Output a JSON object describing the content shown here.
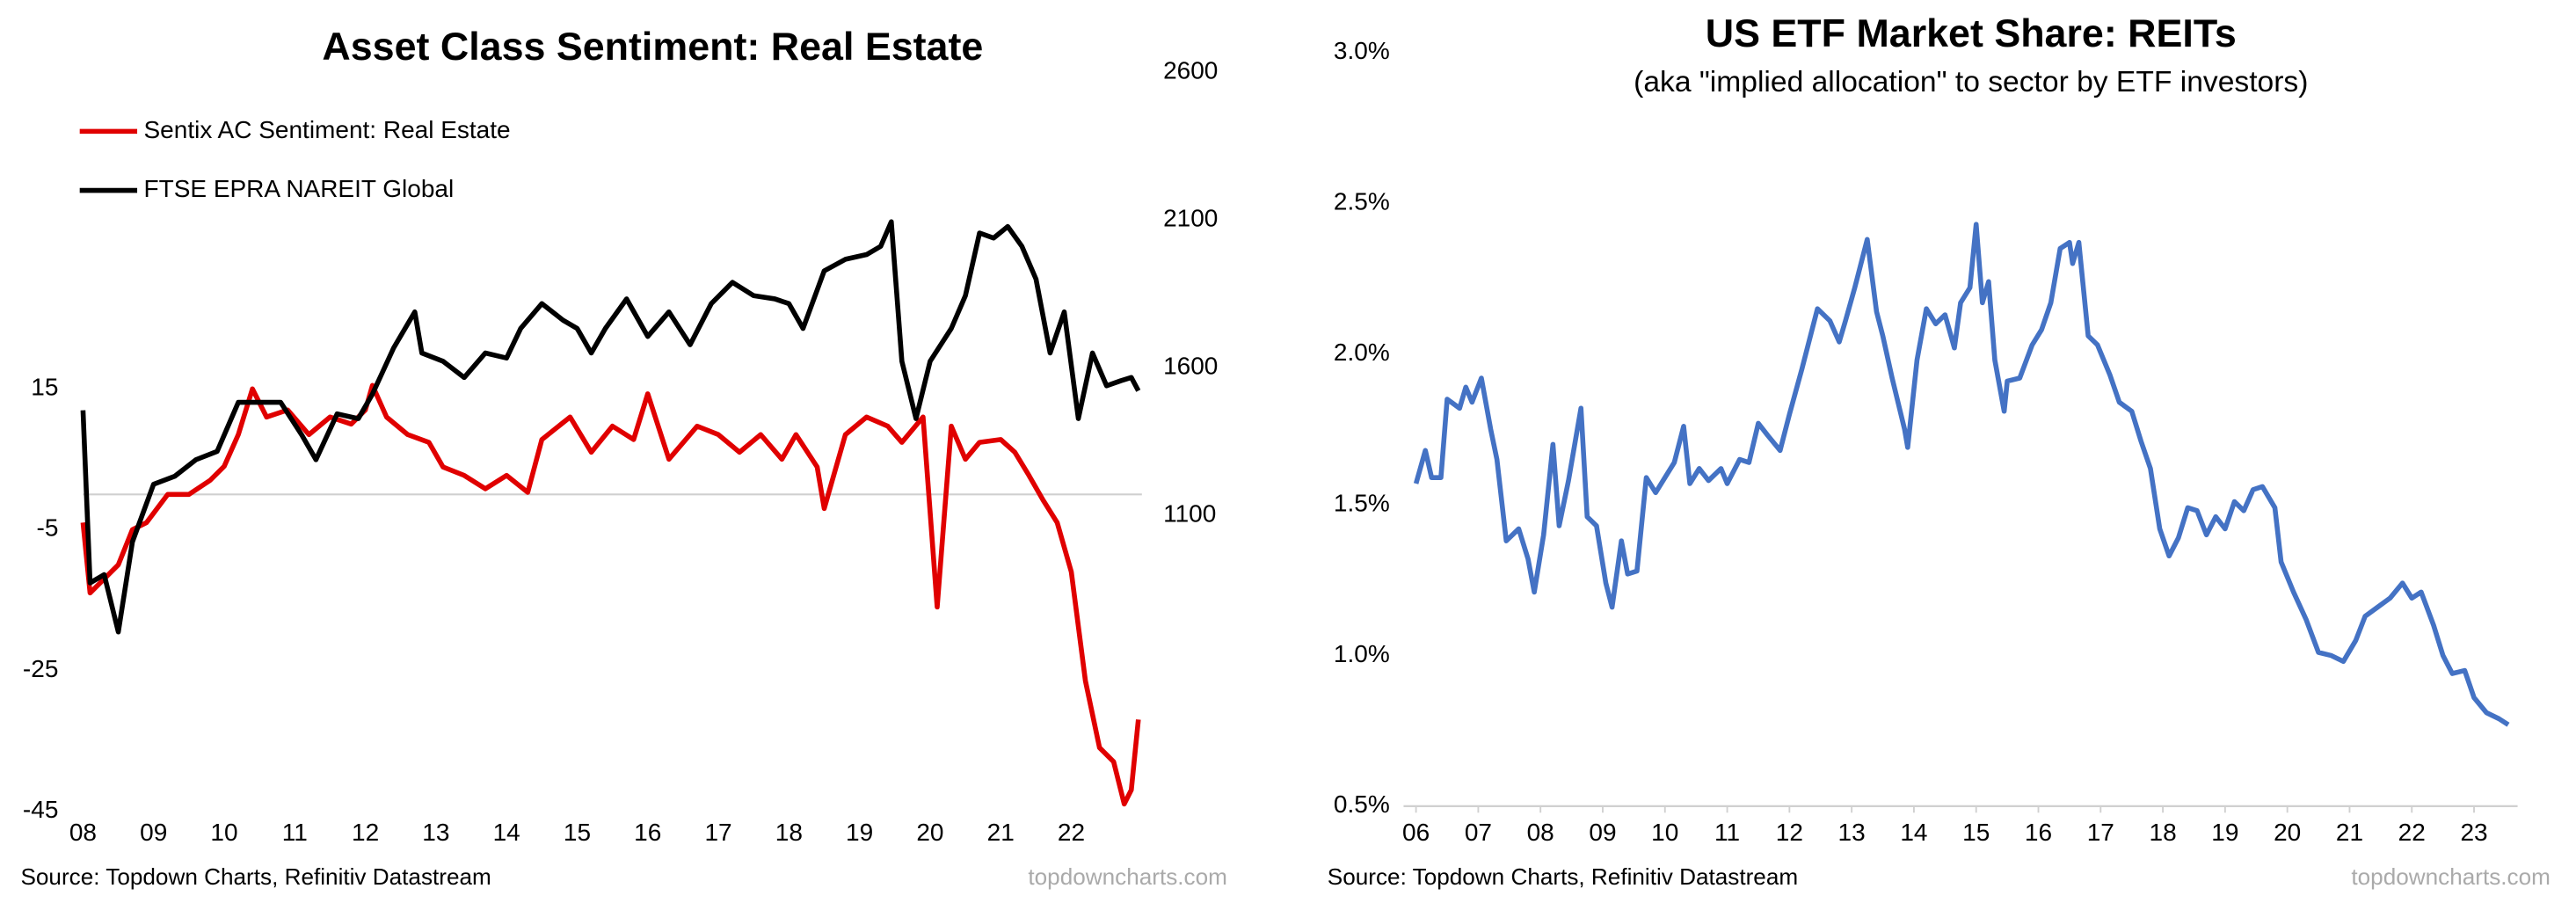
{
  "chart_data": [
    {
      "type": "line",
      "title": "Asset Class Sentiment: Real Estate",
      "source": "Source: Topdown Charts, Refinitiv Datastream",
      "watermark": "topdowncharts.com",
      "legend": "upper-left",
      "xlim": [
        2008,
        2023
      ],
      "xticks": [
        {
          "value": 2008,
          "label": "08"
        },
        {
          "value": 2009,
          "label": "09"
        },
        {
          "value": 2010,
          "label": "10"
        },
        {
          "value": 2011,
          "label": "11"
        },
        {
          "value": 2012,
          "label": "12"
        },
        {
          "value": 2013,
          "label": "13"
        },
        {
          "value": 2014,
          "label": "14"
        },
        {
          "value": 2015,
          "label": "15"
        },
        {
          "value": 2016,
          "label": "16"
        },
        {
          "value": 2017,
          "label": "17"
        },
        {
          "value": 2018,
          "label": "18"
        },
        {
          "value": 2019,
          "label": "19"
        },
        {
          "value": 2020,
          "label": "20"
        },
        {
          "value": 2021,
          "label": "21"
        },
        {
          "value": 2022,
          "label": "22"
        }
      ],
      "ylim": [
        -45,
        60
      ],
      "yticks": [
        15,
        -5,
        -25,
        -45
      ],
      "y2lim": [
        100,
        2600
      ],
      "y2ticks": [
        1100,
        1600,
        2100,
        2600
      ],
      "series": [
        {
          "name": "Sentix AC Sentiment: Real Estate",
          "color": "#e00000",
          "x": [
            2008.0,
            2008.1,
            2008.3,
            2008.5,
            2008.7,
            2008.9,
            2009.2,
            2009.5,
            2009.8,
            2010.0,
            2010.2,
            2010.4,
            2010.6,
            2010.9,
            2011.2,
            2011.5,
            2011.8,
            2012.0,
            2012.1,
            2012.3,
            2012.6,
            2012.9,
            2013.1,
            2013.4,
            2013.7,
            2014.0,
            2014.3,
            2014.5,
            2014.9,
            2015.2,
            2015.5,
            2015.8,
            2016.0,
            2016.3,
            2016.7,
            2017.0,
            2017.3,
            2017.6,
            2017.9,
            2018.1,
            2018.4,
            2018.5,
            2018.8,
            2019.1,
            2019.4,
            2019.6,
            2019.9,
            2020.1,
            2020.3,
            2020.5,
            2020.7,
            2021.0,
            2021.2,
            2021.4,
            2021.6,
            2021.8,
            2022.0,
            2022.2,
            2022.4,
            2022.6,
            2022.75,
            2022.85,
            2022.95
          ],
          "values": [
            -4,
            -14,
            -12,
            -10,
            -5,
            -4,
            0,
            0,
            2,
            4,
            8.5,
            15,
            11,
            12,
            8.5,
            11,
            10,
            12,
            15.5,
            11,
            8.5,
            7.4,
            3.9,
            2.7,
            0.8,
            2.7,
            0.3,
            7.8,
            11,
            6,
            9.7,
            7.8,
            14.3,
            5,
            9.7,
            8.5,
            6,
            8.5,
            5,
            8.5,
            3.9,
            -2,
            8.5,
            11,
            9.7,
            7.4,
            11,
            -16,
            9.7,
            5,
            7.4,
            7.8,
            6,
            2.7,
            -0.8,
            -4,
            -11,
            -26.5,
            -36,
            -38,
            -44,
            -42,
            -32
          ]
        },
        {
          "name": "FTSE EPRA NAREIT Global",
          "color": "#000000",
          "axis": "y2",
          "x": [
            2008.0,
            2008.1,
            2008.3,
            2008.5,
            2008.7,
            2009.0,
            2009.3,
            2009.6,
            2009.9,
            2010.2,
            2010.5,
            2010.8,
            2011.1,
            2011.3,
            2011.6,
            2011.9,
            2012.1,
            2012.4,
            2012.7,
            2012.8,
            2013.1,
            2013.4,
            2013.7,
            2014.0,
            2014.2,
            2014.5,
            2014.8,
            2015.0,
            2015.2,
            2015.4,
            2015.7,
            2016.0,
            2016.3,
            2016.6,
            2016.9,
            2017.2,
            2017.5,
            2017.8,
            2018.0,
            2018.2,
            2018.5,
            2018.8,
            2019.1,
            2019.3,
            2019.45,
            2019.6,
            2019.8,
            2020.0,
            2020.3,
            2020.5,
            2020.7,
            2020.9,
            2021.1,
            2021.3,
            2021.5,
            2021.7,
            2021.9,
            2022.1,
            2022.3,
            2022.5,
            2022.7,
            2022.85,
            2022.95
          ],
          "values": [
            1456,
            872,
            900,
            706,
            1011,
            1206,
            1233,
            1289,
            1317,
            1483,
            1483,
            1483,
            1372,
            1289,
            1444,
            1428,
            1511,
            1667,
            1789,
            1650,
            1622,
            1567,
            1650,
            1633,
            1733,
            1817,
            1761,
            1733,
            1650,
            1733,
            1833,
            1706,
            1789,
            1678,
            1817,
            1889,
            1844,
            1833,
            1817,
            1733,
            1928,
            1967,
            1983,
            2011,
            2094,
            1622,
            1428,
            1622,
            1733,
            1844,
            2056,
            2039,
            2078,
            2011,
            1900,
            1650,
            1789,
            1428,
            1650,
            1539,
            1556,
            1567,
            1522
          ]
        }
      ]
    },
    {
      "type": "line",
      "title": "US ETF Market Share: REITs",
      "subtitle": "(aka \"implied allocation\" to sector by ETF investors)",
      "source": "Source: Topdown Charts, Refinitiv Datastream",
      "watermark": "topdowncharts.com",
      "xlim": [
        2005.8,
        2023.7
      ],
      "xticks": [
        {
          "value": 2006,
          "label": "06"
        },
        {
          "value": 2007,
          "label": "07"
        },
        {
          "value": 2008,
          "label": "08"
        },
        {
          "value": 2009,
          "label": "09"
        },
        {
          "value": 2010,
          "label": "10"
        },
        {
          "value": 2011,
          "label": "11"
        },
        {
          "value": 2012,
          "label": "12"
        },
        {
          "value": 2013,
          "label": "13"
        },
        {
          "value": 2014,
          "label": "14"
        },
        {
          "value": 2015,
          "label": "15"
        },
        {
          "value": 2016,
          "label": "16"
        },
        {
          "value": 2017,
          "label": "17"
        },
        {
          "value": 2018,
          "label": "18"
        },
        {
          "value": 2019,
          "label": "19"
        },
        {
          "value": 2020,
          "label": "20"
        },
        {
          "value": 2021,
          "label": "21"
        },
        {
          "value": 2022,
          "label": "22"
        },
        {
          "value": 2023,
          "label": "23"
        }
      ],
      "ylim": [
        0.5,
        3.0
      ],
      "yticks": [
        {
          "value": 0.5,
          "label": "0.5%"
        },
        {
          "value": 1.0,
          "label": "1.0%"
        },
        {
          "value": 1.5,
          "label": "1.5%"
        },
        {
          "value": 2.0,
          "label": "2.0%"
        },
        {
          "value": 2.5,
          "label": "2.5%"
        },
        {
          "value": 3.0,
          "label": "3.0%"
        }
      ],
      "series": [
        {
          "name": "US ETF Market Share: REITs",
          "color": "#4472c4",
          "x": [
            2006.0,
            2006.15,
            2006.25,
            2006.4,
            2006.5,
            2006.7,
            2006.8,
            2006.9,
            2007.05,
            2007.2,
            2007.3,
            2007.45,
            2007.65,
            2007.8,
            2007.9,
            2008.05,
            2008.2,
            2008.3,
            2008.45,
            2008.65,
            2008.75,
            2008.9,
            2009.05,
            2009.15,
            2009.3,
            2009.4,
            2009.55,
            2009.7,
            2009.85,
            2010.0,
            2010.15,
            2010.3,
            2010.4,
            2010.55,
            2010.7,
            2010.9,
            2011.0,
            2011.2,
            2011.35,
            2011.5,
            2011.65,
            2011.85,
            2012.0,
            2012.2,
            2012.45,
            2012.65,
            2012.8,
            2012.9,
            2013.05,
            2013.25,
            2013.4,
            2013.5,
            2013.65,
            2013.85,
            2013.9,
            2014.05,
            2014.2,
            2014.35,
            2014.5,
            2014.65,
            2014.75,
            2014.9,
            2015.0,
            2015.1,
            2015.2,
            2015.3,
            2015.45,
            2015.5,
            2015.7,
            2015.9,
            2016.05,
            2016.2,
            2016.35,
            2016.5,
            2016.55,
            2016.65,
            2016.8,
            2016.95,
            2017.15,
            2017.3,
            2017.5,
            2017.65,
            2017.8,
            2017.95,
            2018.1,
            2018.25,
            2018.4,
            2018.55,
            2018.7,
            2018.85,
            2019.0,
            2019.15,
            2019.3,
            2019.45,
            2019.6,
            2019.8,
            2019.9,
            2020.1,
            2020.3,
            2020.5,
            2020.7,
            2020.9,
            2021.1,
            2021.25,
            2021.45,
            2021.65,
            2021.85,
            2022.0,
            2022.15,
            2022.35,
            2022.5,
            2022.65,
            2022.85,
            2023.0,
            2023.2,
            2023.4,
            2023.55
          ],
          "values": [
            1.57,
            1.68,
            1.59,
            1.59,
            1.85,
            1.82,
            1.89,
            1.84,
            1.92,
            1.75,
            1.65,
            1.38,
            1.42,
            1.32,
            1.21,
            1.4,
            1.7,
            1.43,
            1.58,
            1.82,
            1.46,
            1.43,
            1.24,
            1.16,
            1.38,
            1.27,
            1.28,
            1.59,
            1.54,
            1.59,
            1.64,
            1.76,
            1.57,
            1.62,
            1.58,
            1.62,
            1.57,
            1.65,
            1.64,
            1.77,
            1.73,
            1.68,
            1.8,
            1.95,
            2.15,
            2.11,
            2.04,
            2.11,
            2.22,
            2.38,
            2.14,
            2.06,
            1.92,
            1.75,
            1.69,
            1.98,
            2.15,
            2.1,
            2.13,
            2.02,
            2.17,
            2.22,
            2.43,
            2.17,
            2.24,
            1.98,
            1.81,
            1.91,
            1.92,
            2.03,
            2.08,
            2.17,
            2.35,
            2.37,
            2.3,
            2.37,
            2.06,
            2.03,
            1.93,
            1.84,
            1.81,
            1.71,
            1.62,
            1.42,
            1.33,
            1.39,
            1.49,
            1.48,
            1.4,
            1.46,
            1.42,
            1.51,
            1.48,
            1.55,
            1.56,
            1.49,
            1.31,
            1.21,
            1.12,
            1.01,
            1.0,
            0.98,
            1.05,
            1.13,
            1.16,
            1.19,
            1.24,
            1.19,
            1.21,
            1.1,
            1.0,
            0.94,
            0.95,
            0.86,
            0.81,
            0.79,
            0.77
          ]
        }
      ]
    }
  ]
}
